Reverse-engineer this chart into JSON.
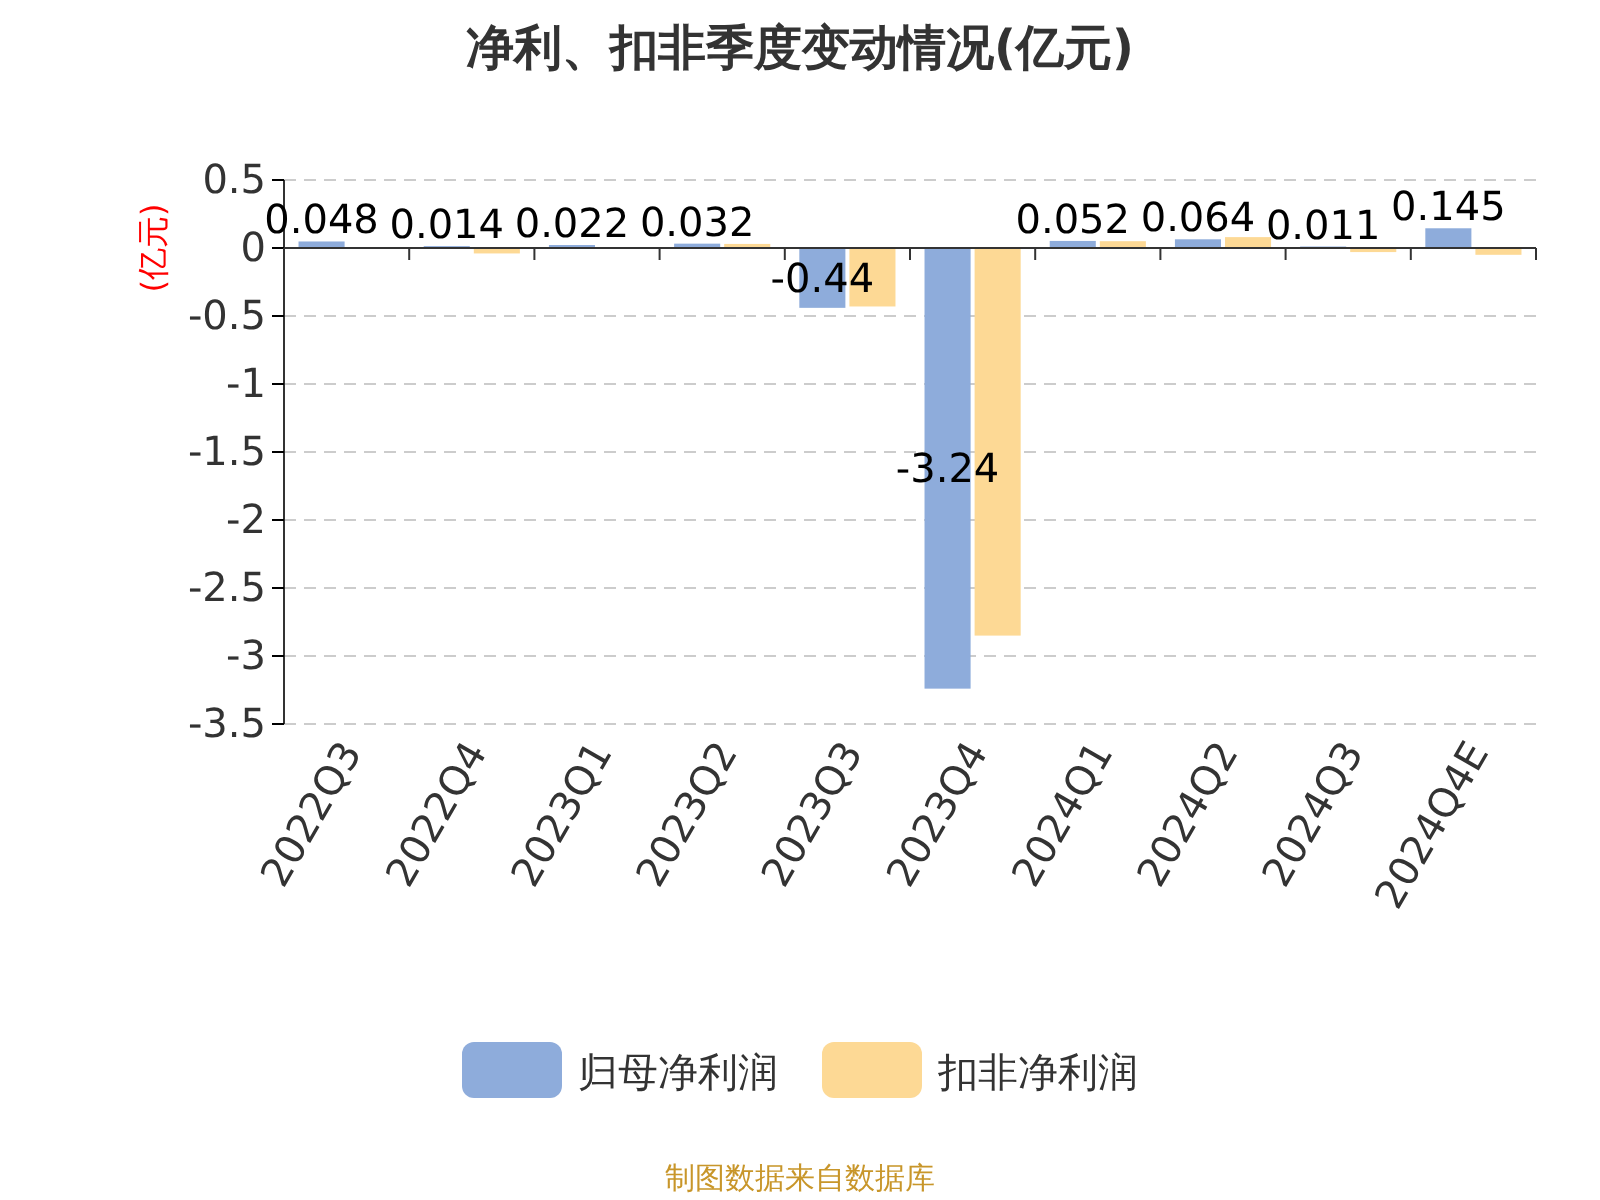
{
  "chart_data": {
    "type": "bar",
    "title": "净利、扣非季度变动情况(亿元)",
    "ylabel": "(亿元)",
    "categories": [
      "2022Q3",
      "2022Q4",
      "2023Q1",
      "2023Q2",
      "2023Q3",
      "2023Q4",
      "2024Q1",
      "2024Q2",
      "2024Q3",
      "2024Q4E"
    ],
    "series": [
      {
        "name": "归母净利润",
        "color": "#8eacdb",
        "values": [
          0.048,
          0.014,
          0.022,
          0.032,
          -0.44,
          -3.24,
          0.052,
          0.064,
          0.011,
          0.145
        ],
        "value_labels": [
          "0.048",
          "0.014",
          "0.022",
          "0.032",
          "-0.44",
          "-3.24",
          "0.052",
          "0.064",
          "0.011",
          "0.145"
        ]
      },
      {
        "name": "扣非净利润",
        "color": "#fdd995",
        "values": [
          null,
          -0.04,
          null,
          0.03,
          -0.43,
          -2.85,
          0.05,
          0.08,
          -0.03,
          -0.05
        ]
      }
    ],
    "ylim": [
      -3.5,
      0.5
    ],
    "yticks": [
      -3.5,
      -3,
      -2.5,
      -2,
      -1.5,
      -1,
      -0.5,
      0,
      0.5
    ],
    "grid": "y",
    "legend": "bottom",
    "annotations": [
      "制图数据来自数据库"
    ]
  }
}
